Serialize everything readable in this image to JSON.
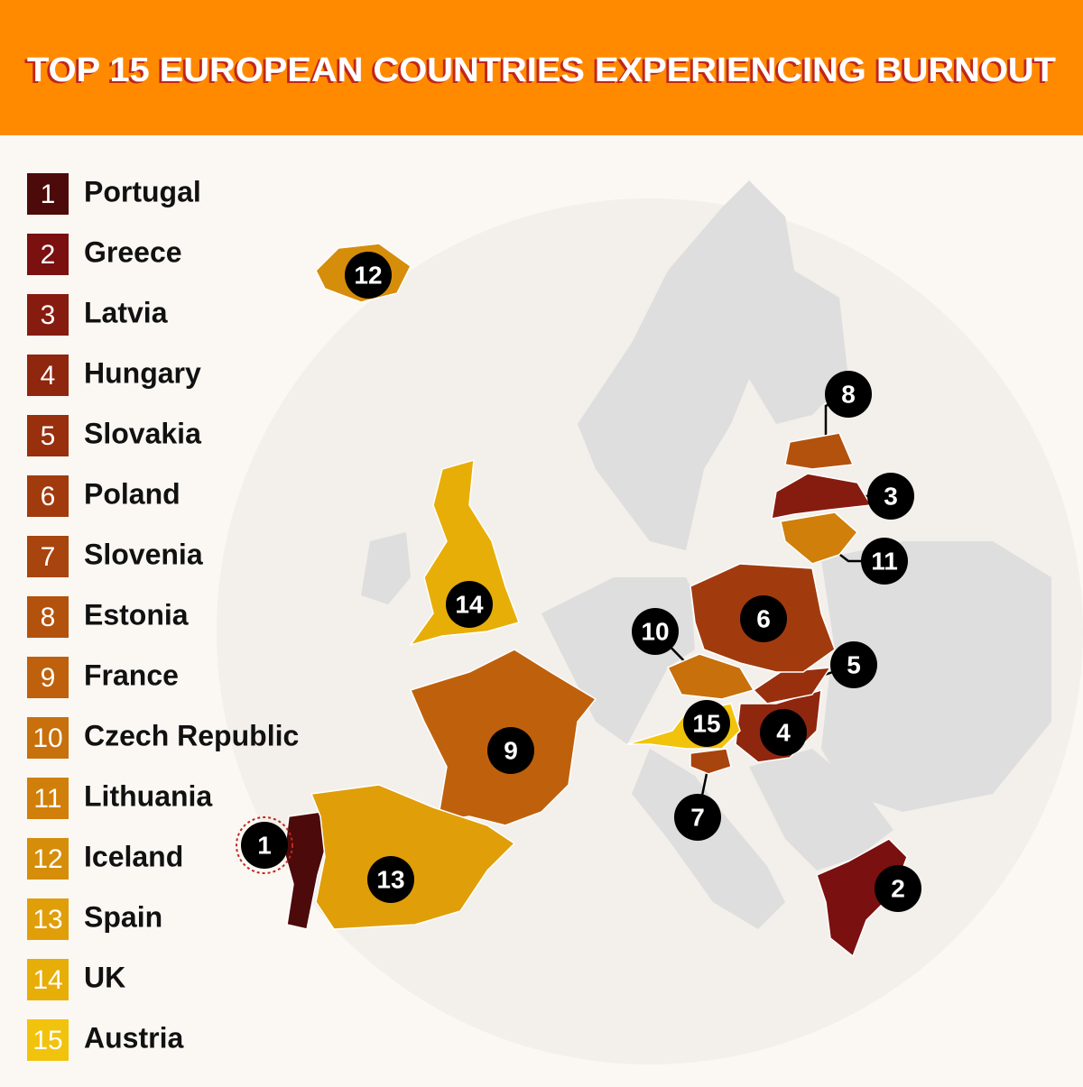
{
  "header": {
    "title": "TOP 15 EUROPEAN COUNTRIES EXPERIENCING BURNOUT"
  },
  "legend": [
    {
      "rank": "1",
      "name": "Portugal",
      "color": "#4d0a0a"
    },
    {
      "rank": "2",
      "name": "Greece",
      "color": "#7a1010"
    },
    {
      "rank": "3",
      "name": "Latvia",
      "color": "#861c0f"
    },
    {
      "rank": "4",
      "name": "Hungary",
      "color": "#8f260e"
    },
    {
      "rank": "5",
      "name": "Slovakia",
      "color": "#98300e"
    },
    {
      "rank": "6",
      "name": "Poland",
      "color": "#a13b0e"
    },
    {
      "rank": "7",
      "name": "Slovenia",
      "color": "#a8440d"
    },
    {
      "rank": "8",
      "name": "Estonia",
      "color": "#b3520d"
    },
    {
      "rank": "9",
      "name": "France",
      "color": "#bf610c"
    },
    {
      "rank": "10",
      "name": "Czech Republic",
      "color": "#c8700b"
    },
    {
      "rank": "11",
      "name": "Lithuania",
      "color": "#d07f0a"
    },
    {
      "rank": "12",
      "name": "Iceland",
      "color": "#d68d0a"
    },
    {
      "rank": "13",
      "name": "Spain",
      "color": "#e09e09"
    },
    {
      "rank": "14",
      "name": "UK",
      "color": "#e8ae08"
    },
    {
      "rank": "15",
      "name": "Austria",
      "color": "#f2c30c"
    }
  ]
}
